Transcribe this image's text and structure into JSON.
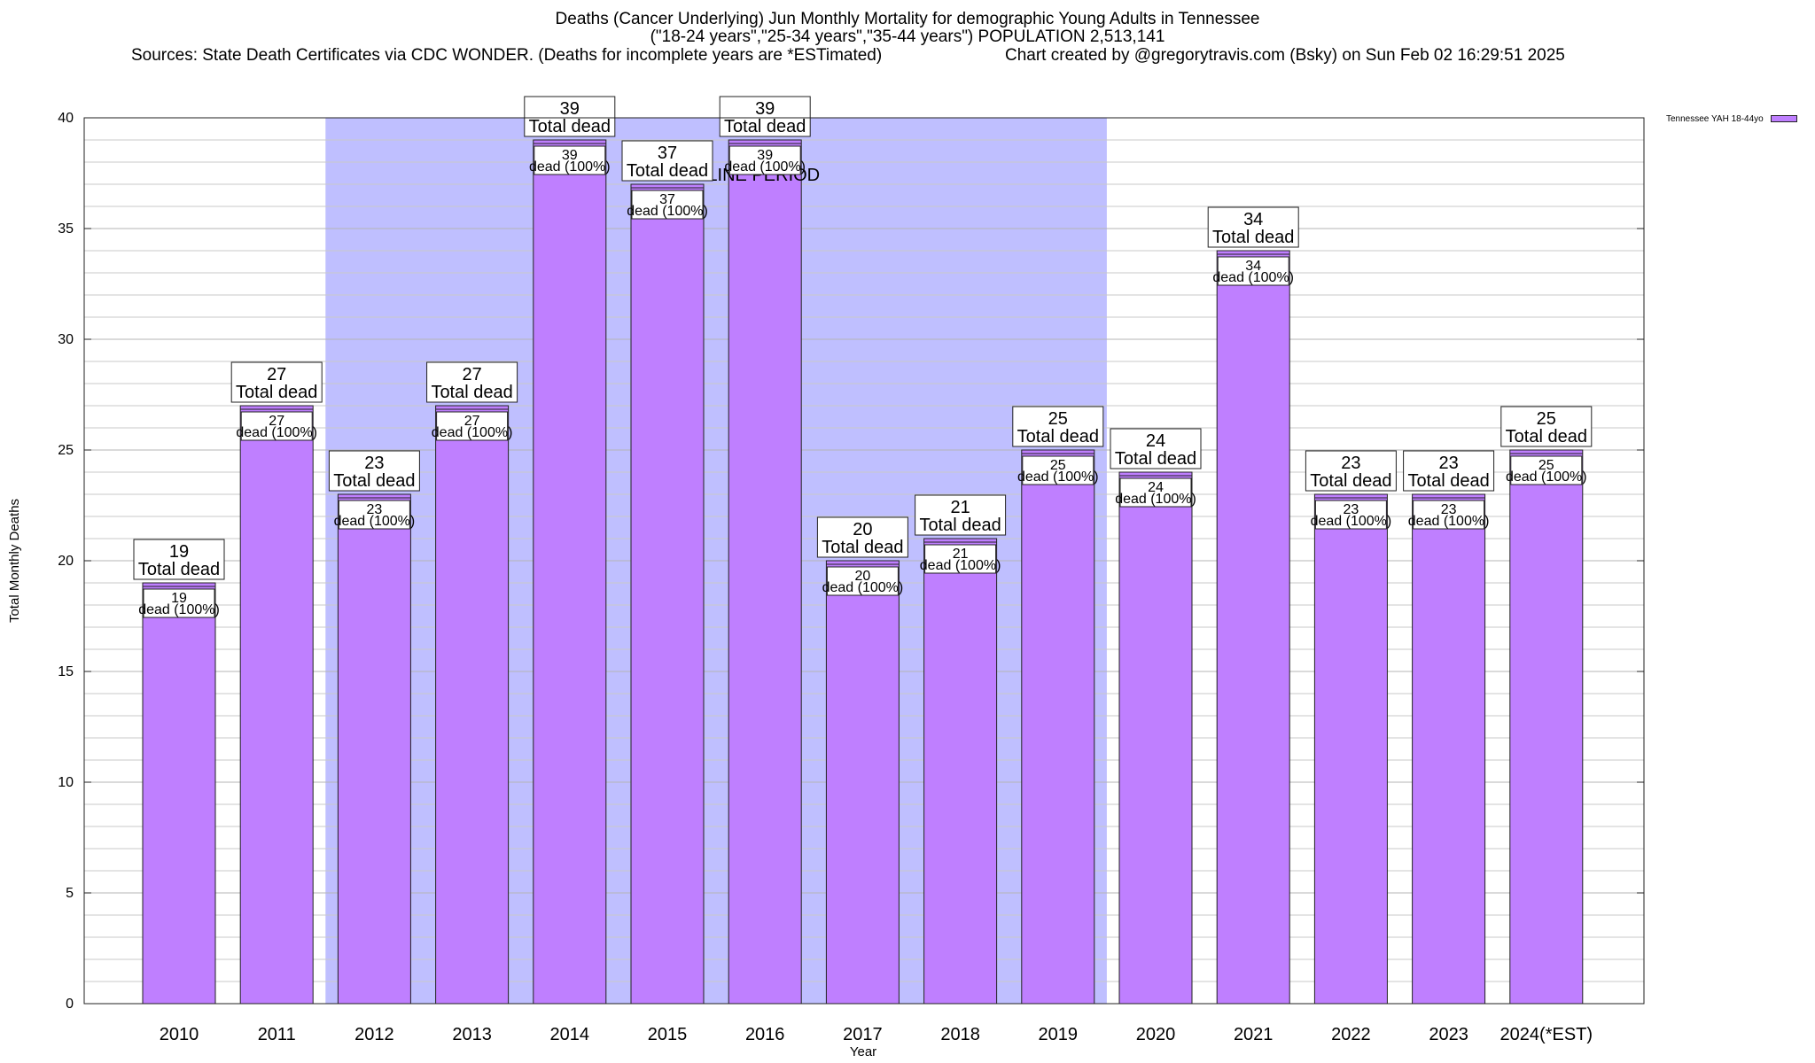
{
  "header": {
    "title_line1": "Deaths (Cancer Underlying) Jun Monthly Mortality for demographic Young Adults in Tennessee",
    "title_line2": "(\"18-24 years\",\"25-34 years\",\"35-44 years\") POPULATION 2,513,141",
    "sources": "Sources: State Death Certificates via CDC WONDER. (Deaths for incomplete years are *ESTimated)",
    "credit": "Chart created by @gregorytravis.com (Bsky) on Sun Feb 02 16:29:51 2025"
  },
  "legend": {
    "label": "Tennessee YAH 18-44yo"
  },
  "colors": {
    "bar": "#bf7fff",
    "baseline_band": "#bfbfff",
    "grid": "#c8c8c8"
  },
  "chart_data": {
    "type": "bar",
    "xlabel": "Year",
    "ylabel": "Total Monthly Deaths",
    "ylim": [
      0,
      40
    ],
    "yticks": [
      0,
      5,
      10,
      15,
      20,
      25,
      30,
      35,
      40
    ],
    "grid": true,
    "legend_position": "top-right, outside plot",
    "categories": [
      "2010",
      "2011",
      "2012",
      "2013",
      "2014",
      "2015",
      "2016",
      "2017",
      "2018",
      "2019",
      "2020",
      "2021",
      "2022",
      "2023",
      "2024(*EST)"
    ],
    "series": [
      {
        "name": "Tennessee YAH 18-44yo",
        "values": [
          19,
          27,
          23,
          27,
          39,
          37,
          39,
          20,
          21,
          25,
          24,
          34,
          23,
          23,
          25
        ]
      }
    ],
    "bar_label_top": "Total dead",
    "bar_label_inner": "dead (100%)",
    "baseline_period": {
      "label": "BASELINE PERIOD",
      "from": "2012",
      "to": "2019"
    }
  }
}
